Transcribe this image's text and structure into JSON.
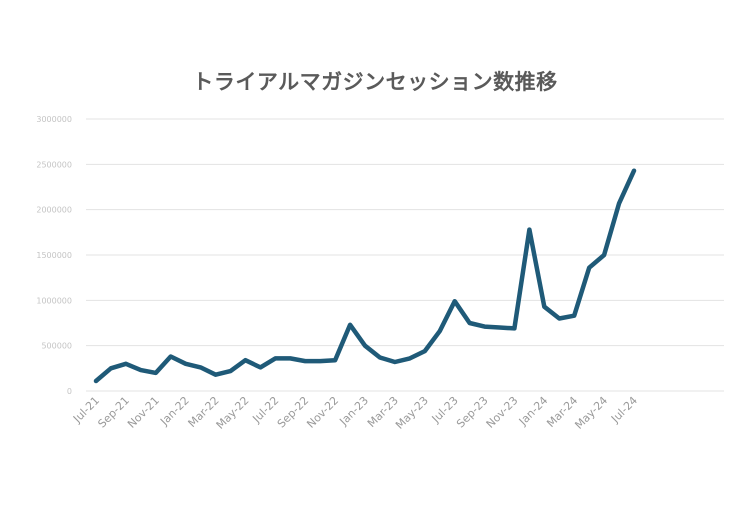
{
  "chart_data": {
    "type": "line",
    "title": "トライアルマガジンセッション数推移",
    "xlabel": "",
    "ylabel": "",
    "ylim": [
      0,
      3000000
    ],
    "grid": true,
    "legend": "none",
    "line_color": "#1f5a78",
    "y_ticks": [
      "0",
      "500000",
      "1000000",
      "1500000",
      "2000000",
      "2500000",
      "3000000"
    ],
    "x_tick_labels": [
      "Jul-21",
      "Sep-21",
      "Nov-21",
      "Jan-22",
      "Mar-22",
      "May-22",
      "Jul-22",
      "Sep-22",
      "Nov-22",
      "Jan-23",
      "Mar-23",
      "May-23",
      "Jul-23",
      "Sep-23",
      "Nov-23",
      "Jan-24",
      "Mar-24",
      "May-24",
      "Jul-24"
    ],
    "x": [
      "Jul-21",
      "Aug-21",
      "Sep-21",
      "Oct-21",
      "Nov-21",
      "Dec-21",
      "Jan-22",
      "Feb-22",
      "Mar-22",
      "Apr-22",
      "May-22",
      "Jun-22",
      "Jul-22",
      "Aug-22",
      "Sep-22",
      "Oct-22",
      "Nov-22",
      "Dec-22",
      "Jan-23",
      "Feb-23",
      "Mar-23",
      "Apr-23",
      "May-23",
      "Jun-23",
      "Jul-23",
      "Aug-23",
      "Sep-23",
      "Oct-23",
      "Nov-23",
      "Dec-23",
      "Jan-24",
      "Feb-24",
      "Mar-24",
      "Apr-24",
      "May-24",
      "Jun-24",
      "Jul-24"
    ],
    "series": [
      {
        "values": [
          110000,
          250000,
          300000,
          230000,
          200000,
          380000,
          300000,
          260000,
          180000,
          220000,
          340000,
          260000,
          360000,
          360000,
          330000,
          330000,
          340000,
          730000,
          500000,
          370000,
          320000,
          360000,
          440000,
          660000,
          990000,
          750000,
          710000,
          700000,
          690000,
          1780000,
          930000,
          800000,
          830000,
          1360000,
          1500000,
          2070000,
          2430000
        ]
      }
    ]
  }
}
